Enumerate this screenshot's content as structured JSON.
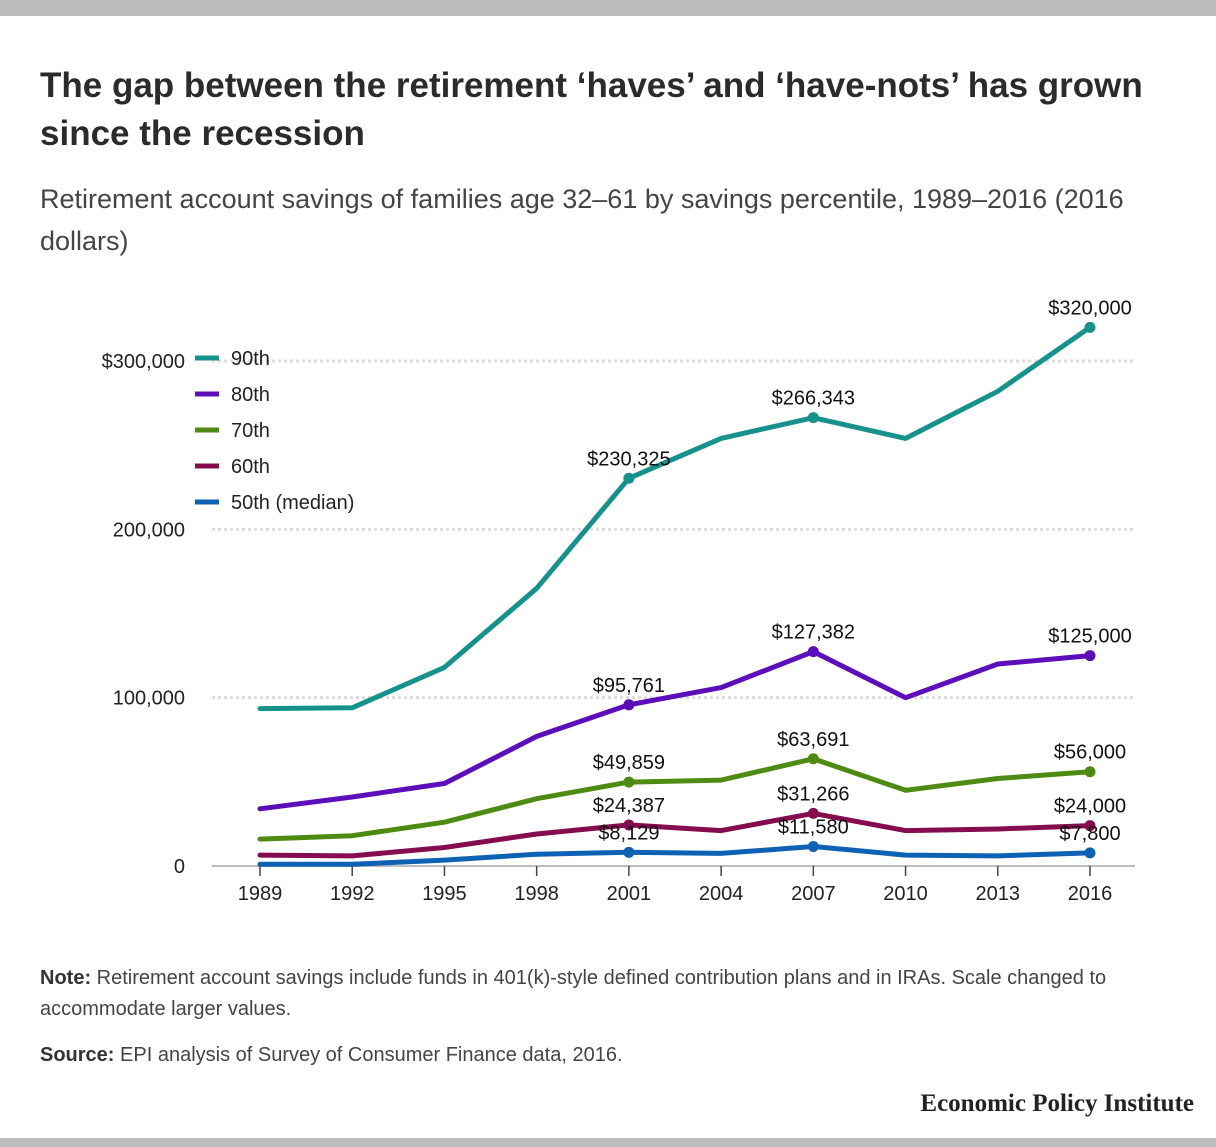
{
  "header": {
    "title": "The gap between the retirement ‘haves’ and ‘have-nots’ has grown since the recession",
    "subtitle": "Retirement account savings of families age 32–61 by savings percentile, 1989–2016 (2016 dollars)"
  },
  "chart_data": {
    "type": "line",
    "x": [
      "1989",
      "1992",
      "1995",
      "1998",
      "2001",
      "2004",
      "2007",
      "2010",
      "2013",
      "2016"
    ],
    "y_ticks": [
      {
        "value": 0,
        "label": "0"
      },
      {
        "value": 100000,
        "label": "100,000"
      },
      {
        "value": 200000,
        "label": "200,000"
      },
      {
        "value": 300000,
        "label": "$300,000"
      }
    ],
    "ylim": [
      0,
      300000
    ],
    "grid": true,
    "legend_position": "top-left",
    "series": [
      {
        "name": "90th",
        "color": "#16918c",
        "values": [
          93500,
          94000,
          118000,
          165000,
          230325,
          254000,
          266343,
          254000,
          282000,
          320000
        ],
        "labels": [
          {
            "index": 4,
            "text": "$230,325"
          },
          {
            "index": 6,
            "text": "$266,343"
          },
          {
            "index": 9,
            "text": "$320,000"
          }
        ]
      },
      {
        "name": "80th",
        "color": "#5b0eb9",
        "values": [
          34000,
          41000,
          49000,
          77000,
          95761,
          106000,
          127382,
          100000,
          120000,
          125000
        ],
        "labels": [
          {
            "index": 4,
            "text": "$95,761"
          },
          {
            "index": 6,
            "text": "$127,382"
          },
          {
            "index": 9,
            "text": "$125,000"
          }
        ]
      },
      {
        "name": "70th",
        "color": "#4e8b12",
        "values": [
          16000,
          18000,
          26000,
          40000,
          49859,
          51000,
          63691,
          45000,
          52000,
          56000
        ],
        "labels": [
          {
            "index": 4,
            "text": "$49,859"
          },
          {
            "index": 6,
            "text": "$63,691"
          },
          {
            "index": 9,
            "text": "$56,000"
          }
        ]
      },
      {
        "name": "60th",
        "color": "#850c4f",
        "values": [
          6500,
          6000,
          11000,
          19000,
          24387,
          21000,
          31266,
          21000,
          22000,
          24000
        ],
        "labels": [
          {
            "index": 4,
            "text": "$24,387"
          },
          {
            "index": 6,
            "text": "$31,266"
          },
          {
            "index": 9,
            "text": "$24,000"
          }
        ]
      },
      {
        "name": "50th (median)",
        "color": "#0d62b4",
        "values": [
          1000,
          1000,
          3500,
          7000,
          8129,
          7500,
          11580,
          6500,
          6000,
          7800
        ],
        "labels": [
          {
            "index": 4,
            "text": "$8,129"
          },
          {
            "index": 6,
            "text": "$11,580"
          },
          {
            "index": 9,
            "text": "$7,800"
          }
        ]
      }
    ]
  },
  "footer": {
    "note_label": "Note:",
    "note_text": " Retirement account savings include funds in 401(k)-style defined contribution plans and in IRAs. Scale changed to accommodate larger values.",
    "source_label": "Source:",
    "source_text": " EPI analysis of Survey of Consumer Finance data, 2016.",
    "brand": "Economic Policy Institute"
  }
}
